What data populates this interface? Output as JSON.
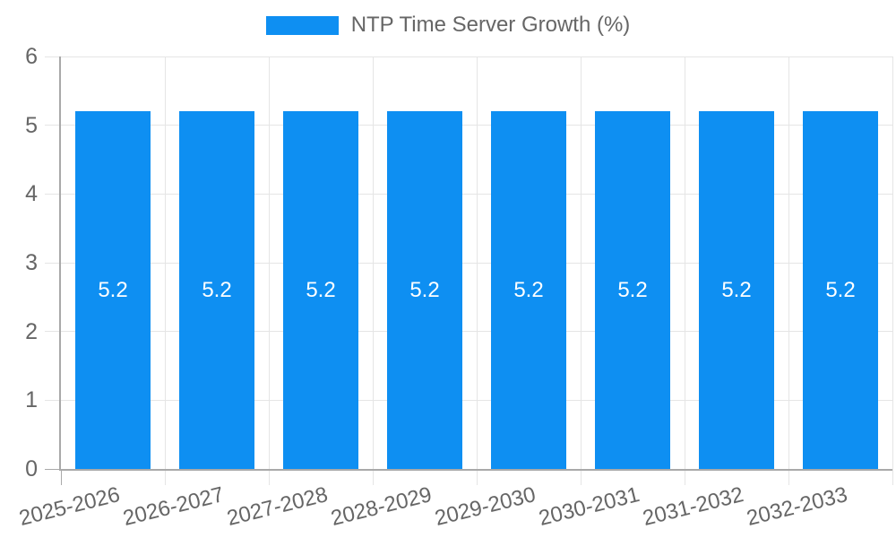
{
  "chart_data": {
    "type": "bar",
    "title": "NTP Time Server Growth (%)",
    "legend": [
      "NTP Time Server Growth (%)"
    ],
    "legend_position": "top",
    "categories": [
      "2025-2026",
      "2026-2027",
      "2027-2028",
      "2028-2029",
      "2029-2030",
      "2030-2031",
      "2031-2032",
      "2032-2033"
    ],
    "values": [
      5.2,
      5.2,
      5.2,
      5.2,
      5.2,
      5.2,
      5.2,
      5.2
    ],
    "data_labels": [
      "5.2",
      "5.2",
      "5.2",
      "5.2",
      "5.2",
      "5.2",
      "5.2",
      "5.2"
    ],
    "xlabel": "",
    "ylabel": "",
    "ylim": [
      0,
      6
    ],
    "yticks": [
      0,
      1,
      2,
      3,
      4,
      5,
      6
    ],
    "grid": true,
    "colors": {
      "bar": "#0e8ff2",
      "bar_label": "#ffffff",
      "text": "#666666",
      "grid": "#e5e5e5",
      "axis": "#a9a9a9",
      "background": "#ffffff"
    }
  }
}
